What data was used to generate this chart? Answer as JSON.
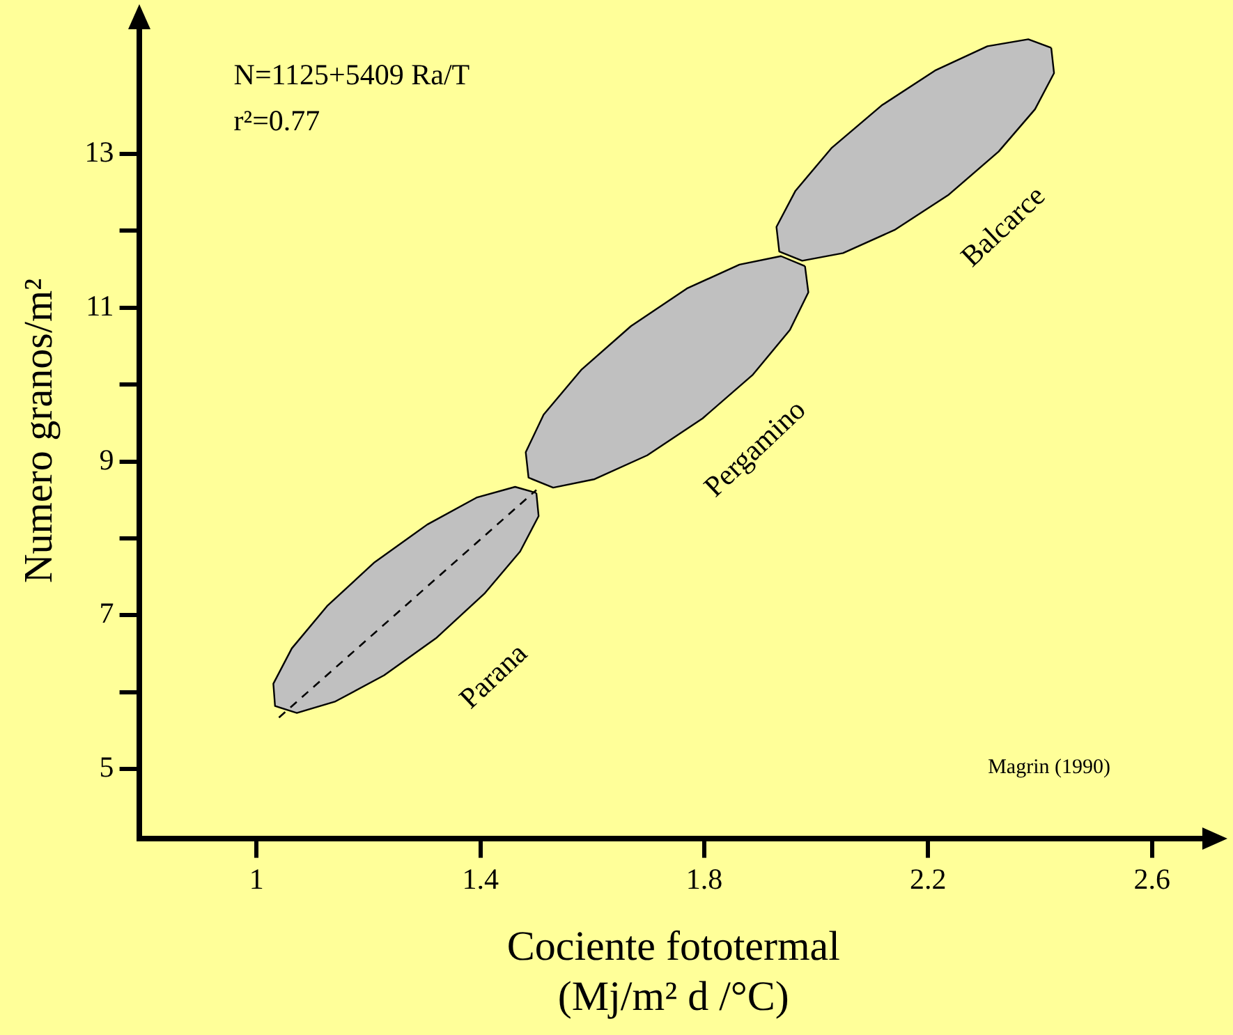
{
  "chart_data": {
    "type": "area",
    "xlabel": "Cociente fototermal\n(Mj/m² d /°C)",
    "ylabel": "Numero granos/m²",
    "annotations": [
      "N=1125+5409 Ra/T",
      "r²=0.77",
      "Magrin (1990)"
    ],
    "xlim": [
      0.79,
      2.7
    ],
    "xticks": [
      1,
      1.4,
      1.8,
      2.2,
      2.6
    ],
    "ylim": [
      4.1,
      14.7
    ],
    "yticks": [
      5,
      {
        "value": 6,
        "label": null
      },
      7,
      {
        "value": 8,
        "label": null
      },
      9,
      {
        "value": 10,
        "label": null
      },
      11,
      {
        "value": 12,
        "label": null
      },
      13
    ],
    "grid": false,
    "legend": false,
    "marker": "none",
    "series": [
      {
        "name": "Parana",
        "color": "#c0c0c0",
        "x": [
          1.5,
          1.504,
          1.471,
          1.407,
          1.322,
          1.228,
          1.141,
          1.072,
          1.033,
          1.03,
          1.063,
          1.126,
          1.211,
          1.305,
          1.393,
          1.462,
          1.5
        ],
        "values": [
          8.59,
          8.29,
          7.83,
          7.28,
          6.71,
          6.22,
          5.88,
          5.73,
          5.82,
          6.11,
          6.57,
          7.12,
          7.69,
          8.18,
          8.53,
          8.67,
          8.59
        ]
      },
      {
        "name": "Pergamino",
        "color": "#c0c0c0",
        "x": [
          1.98,
          1.986,
          1.953,
          1.887,
          1.797,
          1.698,
          1.604,
          1.53,
          1.486,
          1.481,
          1.513,
          1.58,
          1.669,
          1.769,
          1.863,
          1.937,
          1.98
        ],
        "values": [
          11.54,
          11.2,
          10.71,
          10.13,
          9.56,
          9.08,
          8.77,
          8.66,
          8.79,
          9.12,
          9.61,
          10.19,
          10.76,
          11.25,
          11.56,
          11.67,
          11.54
        ]
      },
      {
        "name": "Balcarce",
        "color": "#c0c0c0",
        "x": [
          2.42,
          2.425,
          2.391,
          2.326,
          2.237,
          2.14,
          2.048,
          1.975,
          1.934,
          1.929,
          1.963,
          2.028,
          2.117,
          2.214,
          2.306,
          2.379,
          2.42
        ],
        "values": [
          14.38,
          14.05,
          13.58,
          13.03,
          12.47,
          12.01,
          11.71,
          11.61,
          11.73,
          12.05,
          12.52,
          13.08,
          13.63,
          14.09,
          14.4,
          14.49,
          14.38
        ]
      },
      {
        "type": "line",
        "color": "#000000",
        "line_style": "dashed",
        "x": [
          1.04,
          1.5
        ],
        "values": [
          5.67,
          8.63
        ]
      }
    ]
  }
}
